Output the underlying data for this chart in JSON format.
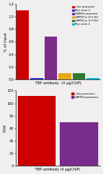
{
  "top_chart": {
    "bars": [
      {
        "label": "c-fos promoter",
        "value": 1.1,
        "color": "#cc0000"
      },
      {
        "label": "Myc exon 2",
        "value": 0.02,
        "color": "#3333cc"
      },
      {
        "label": "GAPDH promoter",
        "value": 0.68,
        "color": "#7b2d8b"
      },
      {
        "label": "GAPDH p (0.5 kb)",
        "value": 0.1,
        "color": "#e6a817"
      },
      {
        "label": "GAPDH p (1.0 kb)",
        "value": 0.1,
        "color": "#2e7d32"
      },
      {
        "label": "Myc exon 2",
        "value": 0.02,
        "color": "#00bcd4"
      }
    ],
    "ylabel": "% of input",
    "xlabel": "TBP antibody  (4 μg/ChIP)",
    "ylim": [
      0,
      1.2
    ],
    "yticks": [
      0,
      0.2,
      0.4,
      0.6,
      0.8,
      1.0,
      1.2
    ],
    "legend_labels": [
      "c-fos promoter",
      "Myc exon 2",
      "GAPDH promoter",
      "GAPDH p (0.5 kb)",
      "GAPDH p (1.0 kb)",
      "Myc exon 2"
    ],
    "legend_colors": [
      "#cc0000",
      "#3333cc",
      "#7b2d8b",
      "#e6a817",
      "#2e7d32",
      "#00bcd4"
    ]
  },
  "bottom_chart": {
    "bars": [
      {
        "label": "c-fos promoter",
        "value": 112,
        "color": "#cc0000"
      },
      {
        "label": "GAPDH promoter",
        "value": 70,
        "color": "#7b2d8b"
      }
    ],
    "ylabel": "Fold",
    "xlabel": "TBP antibody (4 μg/ChIP)",
    "ylim": [
      0,
      120
    ],
    "yticks": [
      0,
      20,
      40,
      60,
      80,
      100,
      120
    ],
    "legend_labels": [
      "c-fos promoter",
      "GAPDH promoter"
    ],
    "legend_colors": [
      "#cc0000",
      "#7b2d8b"
    ]
  },
  "background_color": "#f0eeee"
}
